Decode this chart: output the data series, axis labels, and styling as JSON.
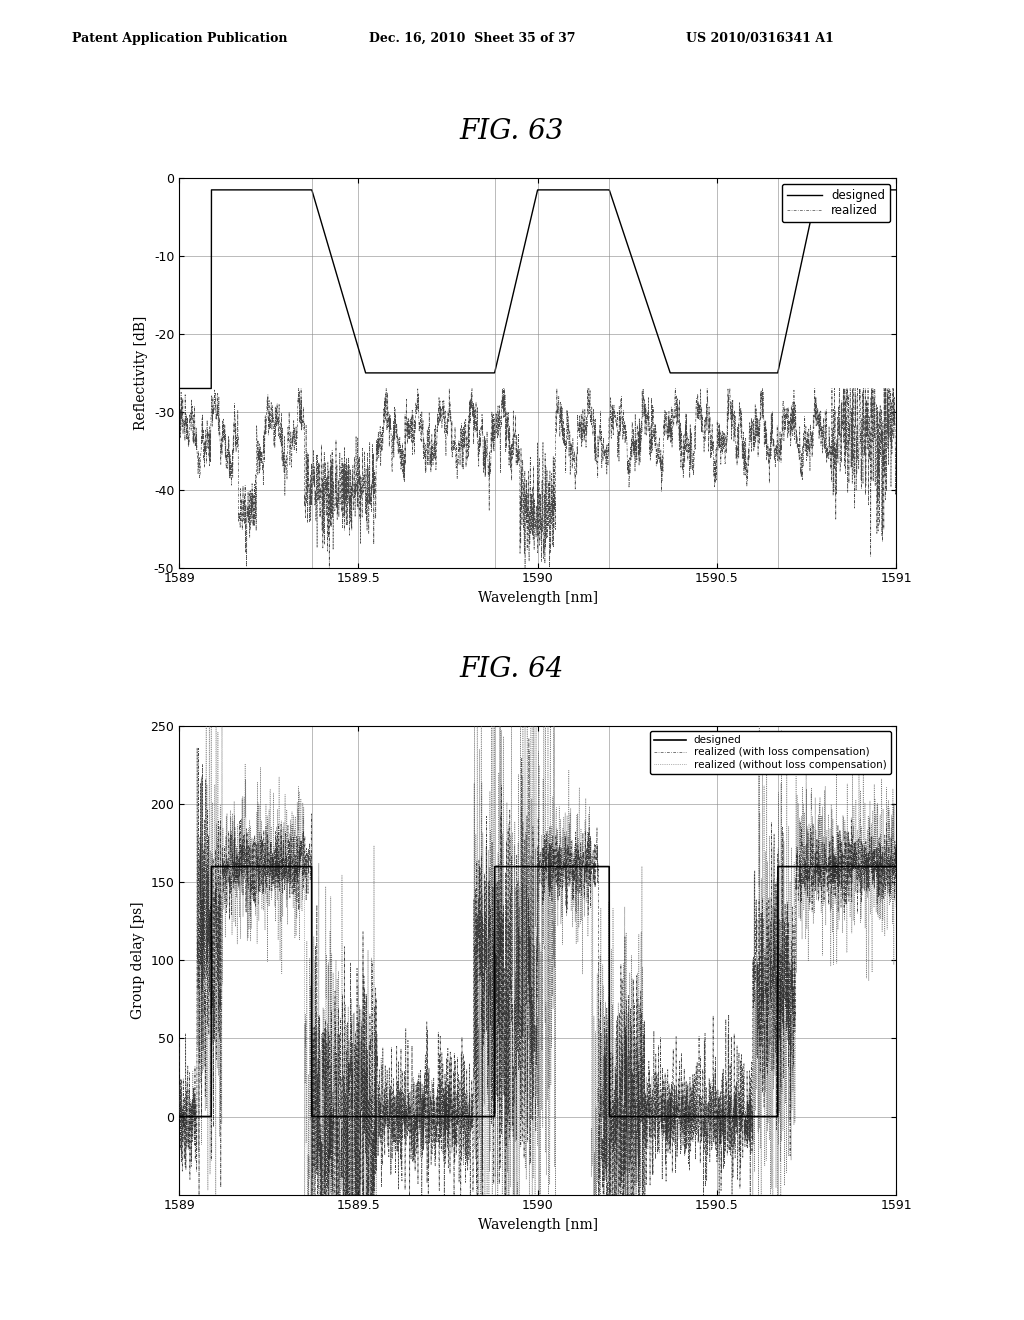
{
  "fig_title1": "FIG. 63",
  "fig_title2": "FIG. 64",
  "header_left": "Patent Application Publication",
  "header_mid": "Dec. 16, 2010  Sheet 35 of 37",
  "header_right": "US 2010/0316341 A1",
  "plot1": {
    "xlabel": "Wavelength [nm]",
    "ylabel": "Reflectivity [dB]",
    "xlim": [
      1589,
      1591
    ],
    "ylim": [
      -50,
      0
    ],
    "yticks": [
      0,
      -10,
      -20,
      -30,
      -40,
      -50
    ],
    "xticks": [
      1589,
      1589.5,
      1590,
      1590.5,
      1591
    ],
    "xtick_labels": [
      "1589",
      "1589.5",
      "1590",
      "1590.5",
      "1591"
    ],
    "ytick_labels": [
      "0",
      "-10",
      "-20",
      "-30",
      "-40",
      "-50"
    ],
    "legend": [
      "designed",
      "realized"
    ]
  },
  "plot2": {
    "xlabel": "Wavelength [nm]",
    "ylabel": "Group delay [ps]",
    "xlim": [
      1589,
      1591
    ],
    "ylim": [
      -50,
      250
    ],
    "yticks": [
      0,
      50,
      100,
      150,
      200,
      250
    ],
    "xticks": [
      1589,
      1589.5,
      1590,
      1590.5,
      1591
    ],
    "xtick_labels": [
      "1589",
      "1589.5",
      "1590",
      "1590.5",
      "1591"
    ],
    "ytick_labels": [
      "0",
      "50",
      "100",
      "150",
      "200",
      "250"
    ],
    "legend": [
      "designed",
      "realized (with loss compensation)",
      "realized (without loss compensation)"
    ]
  }
}
